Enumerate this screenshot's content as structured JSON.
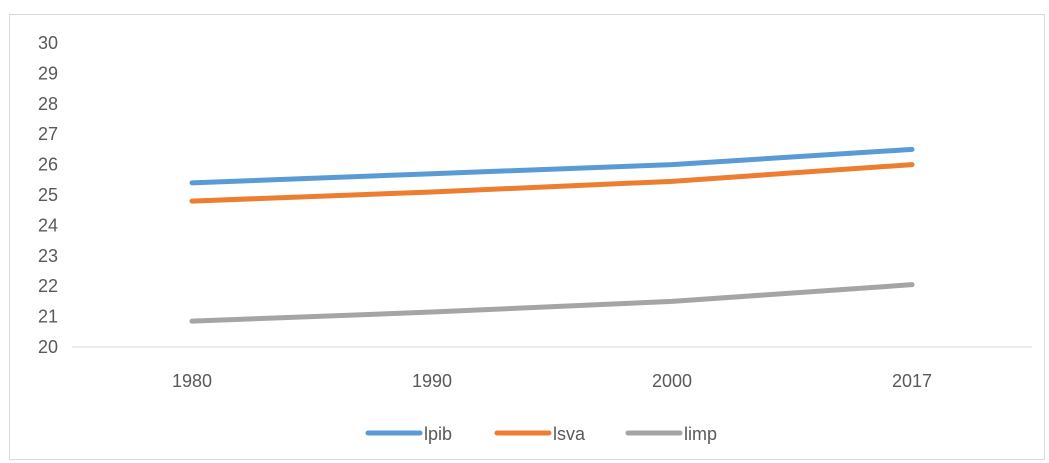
{
  "chart_data": {
    "type": "line",
    "categories": [
      "1980",
      "1990",
      "2000",
      "2017"
    ],
    "series": [
      {
        "name": "lpib",
        "values": [
          25.4,
          25.7,
          26.0,
          26.5
        ],
        "color": "#5b9bd5"
      },
      {
        "name": "lsva",
        "values": [
          24.8,
          25.1,
          25.45,
          26.0
        ],
        "color": "#ed7d31"
      },
      {
        "name": "limp",
        "values": [
          20.85,
          21.15,
          21.5,
          22.05
        ],
        "color": "#a5a5a5"
      }
    ],
    "ylim": [
      20,
      30
    ],
    "yticks": [
      "20",
      "21",
      "22",
      "23",
      "24",
      "25",
      "26",
      "27",
      "28",
      "29",
      "30"
    ],
    "grid": false,
    "legend": "bottom"
  }
}
